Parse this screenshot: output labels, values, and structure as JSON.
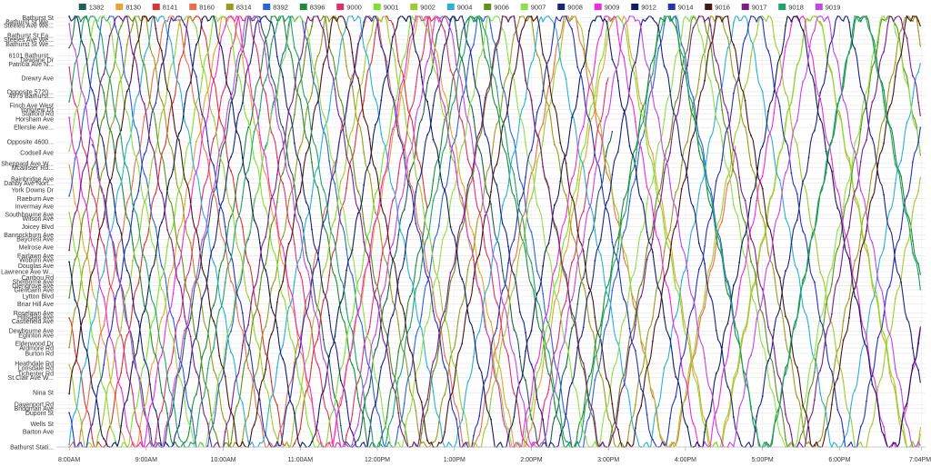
{
  "chart_data": {
    "type": "line",
    "title": "",
    "xlabel": "",
    "ylabel": "",
    "legend_position": "top",
    "grid": true,
    "x_ticks": [
      "8:00AM",
      "9:00AM",
      "10:00AM",
      "11:00AM",
      "12:00PM",
      "1:00PM",
      "2:00PM",
      "3:00PM",
      "4:00PM",
      "5:00PM",
      "6:00PM",
      "7:04PM"
    ],
    "x_tick_minutes": [
      480,
      540,
      600,
      660,
      720,
      780,
      840,
      900,
      960,
      1020,
      1080,
      1144
    ],
    "x_range_minutes": [
      470,
      1147
    ],
    "stops": [
      "Bathurst St",
      "Bathurst St We...",
      "Steeles Ave We...",
      "Bathurst St Ea...",
      "Steeles Ave We...",
      "Bathurst St We...",
      "6101 Bathurst...",
      "Dewlane Dr",
      "Patricia Ave N...",
      "Drewry Ave",
      "Opposite 5720...",
      "4979 Bathurst...",
      "Finch Ave West",
      "Yorkview Dr",
      "Stafford Rd",
      "Horsham Ave",
      "Ellerslie Ave...",
      "Opposite 4600...",
      "Codsell Ave",
      "Sheppard Ave W...",
      "Mcallister Rd...",
      "Bainbridge Ave",
      "Danby Ave Nort...",
      "York Downs Dr",
      "Raeburn Ave",
      "Invermay Ave",
      "Southbourne Ave",
      "Wilson Ave",
      "Joicey Blvd",
      "Bannockburn Ave",
      "Baycrest Ave",
      "Melrose Ave",
      "Fairlawn Ave",
      "Woburn Ave",
      "Douglas Ave",
      "Lawrence Ave W...",
      "Caribou Rd",
      "Shelborne Ave",
      "Glengrove Ave",
      "Glencairn Ave",
      "Lytton Blvd",
      "Briar Hill Ave",
      "Roselawn Ave",
      "Hillsdale Ave",
      "Castlefield Ave",
      "Dewbourne Ave",
      "Eglinton Ave",
      "Elderwood Dr",
      "Ardmore Rd",
      "Burton Rd",
      "Heathdale Rd",
      "Lonsdale Rd",
      "Tichester Rd",
      "St.Clair Ave W...",
      "Nina St",
      "Davenport Rd",
      "Bridgman Ave",
      "Dupont St",
      "Wells St",
      "Barton Ave",
      "Bathurst Stati..."
    ],
    "stop_positions": [
      0.3,
      1.2,
      2.0,
      4.2,
      5.1,
      6.1,
      8.6,
      9.6,
      10.5,
      13.5,
      16.5,
      17.4,
      19.5,
      20.4,
      21.3,
      22.5,
      24.3,
      27.5,
      29.9,
      32.2,
      33.1,
      35.6,
      36.5,
      38.0,
      39.9,
      41.6,
      43.4,
      44.3,
      46.1,
      47.9,
      48.8,
      50.6,
      52.4,
      53.3,
      54.6,
      55.9,
      57.2,
      58.1,
      59.0,
      59.9,
      61.3,
      63.0,
      65.0,
      65.9,
      66.8,
      68.9,
      69.8,
      71.6,
      72.6,
      73.8,
      76.0,
      77.0,
      78.2,
      79.1,
      82.4,
      85.0,
      85.9,
      86.9,
      89.2,
      90.9,
      94.3
    ],
    "stop_position_range": [
      0,
      94.3
    ],
    "series": [
      {
        "name": "1382",
        "color": "#1f5f52",
        "start": 498,
        "end": 904,
        "mode": "wave",
        "period": 150,
        "phase": 0
      },
      {
        "name": "8130",
        "color": "#e8a23a",
        "start": 480,
        "end": 1144,
        "mode": "wave",
        "period": 152,
        "phase": 0.15
      },
      {
        "name": "8141",
        "color": "#d93434",
        "start": 480,
        "end": 760,
        "mode": "wave",
        "period": 148,
        "phase": 0.3
      },
      {
        "name": "8160",
        "color": "#e96f4a",
        "start": 480,
        "end": 1000,
        "mode": "wave",
        "period": 155,
        "phase": 0.45
      },
      {
        "name": "8314",
        "color": "#9a9a1e",
        "start": 480,
        "end": 1144,
        "mode": "wave",
        "period": 150,
        "phase": 0.6
      },
      {
        "name": "8392",
        "color": "#2b63d8",
        "start": 480,
        "end": 1000,
        "mode": "wave",
        "period": 146,
        "phase": 0.75
      },
      {
        "name": "8396",
        "color": "#1e8a3a",
        "start": 480,
        "end": 1144,
        "mode": "wave",
        "period": 152,
        "phase": 0.9
      },
      {
        "name": "9000",
        "color": "#e0306a",
        "start": 480,
        "end": 900,
        "mode": "wave",
        "period": 149,
        "phase": 0.05
      },
      {
        "name": "9001",
        "color": "#7fe02a",
        "start": 480,
        "end": 1144,
        "mode": "wave",
        "period": 154,
        "phase": 0.2
      },
      {
        "name": "9002",
        "color": "#9ecb2f",
        "start": 480,
        "end": 1144,
        "mode": "wave",
        "period": 150,
        "phase": 0.35
      },
      {
        "name": "9004",
        "color": "#2bb0d6",
        "start": 480,
        "end": 1144,
        "mode": "wave",
        "period": 151,
        "phase": 0.5
      },
      {
        "name": "9006",
        "color": "#5f8f1c",
        "start": 480,
        "end": 1144,
        "mode": "wave",
        "period": 148,
        "phase": 0.65
      },
      {
        "name": "9007",
        "color": "#8ee04a",
        "start": 480,
        "end": 1144,
        "mode": "wave",
        "period": 153,
        "phase": 0.8
      },
      {
        "name": "9008",
        "color": "#1a237e",
        "start": 480,
        "end": 1144,
        "mode": "wave",
        "period": 150,
        "phase": 0.95
      },
      {
        "name": "9009",
        "color": "#ee2bd8",
        "start": 480,
        "end": 1144,
        "mode": "wave",
        "period": 147,
        "phase": 0.1
      },
      {
        "name": "9012",
        "color": "#0f1d5c",
        "start": 480,
        "end": 1144,
        "mode": "wave",
        "period": 152,
        "phase": 0.25
      },
      {
        "name": "9014",
        "color": "#2533b5",
        "start": 480,
        "end": 1144,
        "mode": "wave",
        "period": 150,
        "phase": 0.4
      },
      {
        "name": "9016",
        "color": "#4a1414",
        "start": 480,
        "end": 1144,
        "mode": "wave",
        "period": 149,
        "phase": 0.55
      },
      {
        "name": "9017",
        "color": "#7b1e8a",
        "start": 480,
        "end": 1144,
        "mode": "wave",
        "period": 151,
        "phase": 0.7
      },
      {
        "name": "9018",
        "color": "#1fa36a",
        "start": 480,
        "end": 1144,
        "mode": "wave",
        "period": 150,
        "phase": 0.85
      },
      {
        "name": "9019",
        "color": "#c146e8",
        "start": 480,
        "end": 1144,
        "mode": "wave",
        "period": 148,
        "phase": 0.0
      }
    ]
  }
}
